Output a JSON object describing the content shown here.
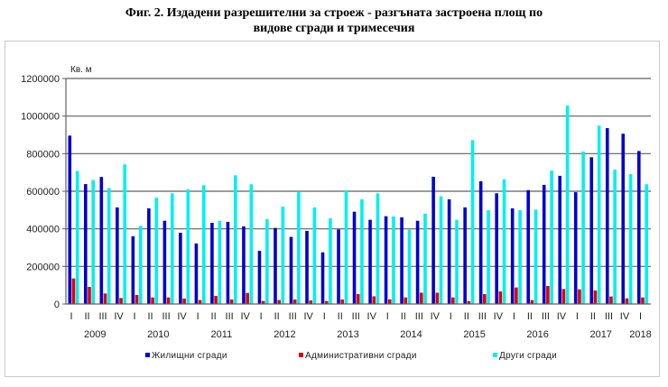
{
  "title": {
    "line1": "Фиг. 2. Издадени разрешителни за строеж - разгъната застроена площ по",
    "line2": "видове сгради и тримесечия"
  },
  "chart_data": {
    "type": "bar",
    "title": "Фиг. 2. Издадени разрешителни за строеж - разгъната застроена площ по видове сгради и тримесечия",
    "xlabel": "",
    "ylabel": "Кв. м",
    "ylim": [
      0,
      1200000
    ],
    "yticks": [
      0,
      200000,
      400000,
      600000,
      800000,
      1000000,
      1200000
    ],
    "grid": true,
    "legend_position": "bottom",
    "years": [
      {
        "label": "2009",
        "quarters": 4
      },
      {
        "label": "2010",
        "quarters": 4
      },
      {
        "label": "2011",
        "quarters": 4
      },
      {
        "label": "2012",
        "quarters": 4
      },
      {
        "label": "2013",
        "quarters": 4
      },
      {
        "label": "2014",
        "quarters": 4
      },
      {
        "label": "2015",
        "quarters": 4
      },
      {
        "label": "2016",
        "quarters": 4
      },
      {
        "label": "2017",
        "quarters": 4
      },
      {
        "label": "2018",
        "quarters": 1
      }
    ],
    "categories": [
      "2009 I",
      "2009 II",
      "2009 III",
      "2009 IV",
      "2010 I",
      "2010 II",
      "2010 III",
      "2010 IV",
      "2011 I",
      "2011 II",
      "2011 III",
      "2011 IV",
      "2012 I",
      "2012 II",
      "2012 III",
      "2012 IV",
      "2013 I",
      "2013 II",
      "2013 III",
      "2013 IV",
      "2014 I",
      "2014 II",
      "2014 III",
      "2014 IV",
      "2015 I",
      "2015 II",
      "2015 III",
      "2015 IV",
      "2016 I",
      "2016 II",
      "2016 III",
      "2016 IV",
      "2017 I",
      "2017 II",
      "2017 III",
      "2017 IV",
      "2018 I"
    ],
    "quarter_labels": [
      "I",
      "II",
      "III",
      "IV",
      "I",
      "II",
      "III",
      "IV",
      "I",
      "II",
      "III",
      "IV",
      "I",
      "II",
      "III",
      "IV",
      "I",
      "II",
      "III",
      "IV",
      "I",
      "II",
      "III",
      "IV",
      "I",
      "II",
      "III",
      "IV",
      "I",
      "II",
      "III",
      "IV",
      "I",
      "II",
      "III",
      "IV",
      "I"
    ],
    "series": [
      {
        "name": "Жилищни сгради",
        "color": "#0000d0",
        "values": [
          896000,
          638000,
          676000,
          514000,
          360000,
          509000,
          443000,
          379000,
          322000,
          432000,
          437000,
          413000,
          283000,
          405000,
          357000,
          389000,
          275000,
          397000,
          491000,
          448000,
          467000,
          461000,
          443000,
          677000,
          557000,
          514000,
          653000,
          589000,
          509000,
          606000,
          634000,
          682000,
          595000,
          781000,
          936000,
          906000,
          814000
        ]
      },
      {
        "name": "Административни сгради",
        "color": "#e00000",
        "values": [
          136000,
          91000,
          56000,
          32000,
          48000,
          35000,
          35000,
          29000,
          21000,
          43000,
          24000,
          59000,
          16000,
          21000,
          24000,
          19000,
          16000,
          24000,
          53000,
          41000,
          25000,
          35000,
          60000,
          60000,
          35000,
          16000,
          53000,
          67000,
          88000,
          21000,
          96000,
          80000,
          78000,
          72000,
          40000,
          30000,
          35000
        ]
      },
      {
        "name": "Други сгради",
        "color": "#00f0f0",
        "values": [
          708000,
          660000,
          617000,
          743000,
          416000,
          566000,
          589000,
          610000,
          632000,
          442000,
          685000,
          637000,
          451000,
          518000,
          595000,
          514000,
          456000,
          605000,
          557000,
          589000,
          466000,
          395000,
          481000,
          573000,
          448000,
          872000,
          499000,
          664000,
          499000,
          502000,
          710000,
          1056000,
          811000,
          949000,
          715000,
          691000,
          637000
        ]
      }
    ]
  },
  "axis": {
    "unit_label": "Кв. м",
    "y_tick_labels": [
      "0",
      "200000",
      "400000",
      "600000",
      "800000",
      "1000000",
      "1200000"
    ]
  },
  "legend": [
    {
      "label": "Жилищни сгради",
      "color": "#0000d0"
    },
    {
      "label": "Административни сгради",
      "color": "#e00000"
    },
    {
      "label": "Други сгради",
      "color": "#00f0f0"
    }
  ]
}
